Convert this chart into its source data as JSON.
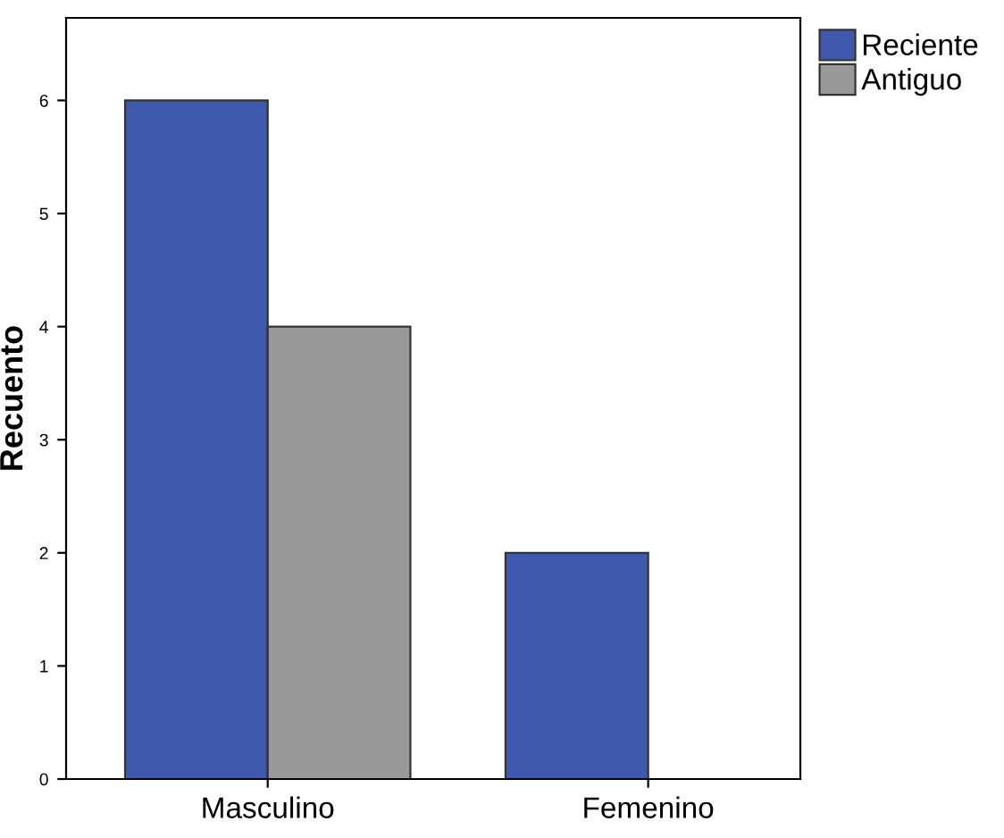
{
  "chart_data": {
    "type": "bar",
    "ylabel": "Recuento",
    "categories": [
      "Masculino",
      "Femenino"
    ],
    "series": [
      {
        "name": "Reciente",
        "color": "#3e58ac",
        "values": [
          6,
          2
        ]
      },
      {
        "name": "Antiguo",
        "color": "#999999",
        "values": [
          4,
          0
        ]
      }
    ],
    "ylim": [
      0,
      6.73
    ],
    "yticks": [
      0,
      1,
      2,
      3,
      4,
      5,
      6
    ],
    "grid": false,
    "legend": "top right"
  }
}
